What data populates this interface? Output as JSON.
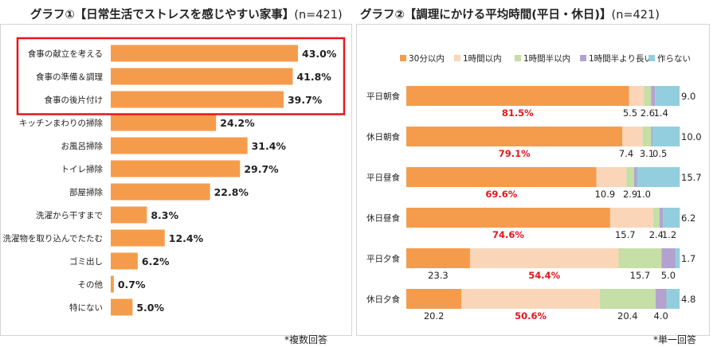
{
  "chart1": {
    "title": "グラフ①【日常生活でストレスを感じやすい家事】",
    "n_label": "(n=421)",
    "note": "*複数回答",
    "colors": {
      "bar": "#f59c4c",
      "highlight": "#e8141c"
    },
    "chart_data": {
      "type": "bar",
      "orientation": "horizontal",
      "categories": [
        "食事の献立を考える",
        "食事の準備＆調理",
        "食事の後片付け",
        "キッチンまわりの掃除",
        "お風呂掃除",
        "トイレ掃除",
        "部屋掃除",
        "洗濯から干すまで",
        "洗濯物を取り込んでたたむ",
        "ゴミ出し",
        "その他",
        "特にない"
      ],
      "values": [
        43.0,
        41.8,
        39.7,
        24.2,
        31.4,
        29.7,
        22.8,
        8.3,
        12.4,
        6.2,
        0.7,
        5.0
      ],
      "value_labels": [
        "43.0%",
        "41.8%",
        "39.7%",
        "24.2%",
        "31.4%",
        "29.7%",
        "22.8%",
        "8.3%",
        "12.4%",
        "6.2%",
        "0.7%",
        "5.0%"
      ],
      "xlim": [
        0,
        43
      ],
      "grid": false,
      "highlighted_categories": [
        "食事の献立を考える",
        "食事の準備＆調理",
        "食事の後片付け"
      ]
    }
  },
  "chart2": {
    "title": "グラフ②【調理にかける平均時間(平日・休日)】",
    "n_label": "(n=421)",
    "note": "*単一回答",
    "colors": {
      "series": [
        "#f59c4c",
        "#fbd5b8",
        "#c5dfa6",
        "#b3a2cf",
        "#93cedf"
      ],
      "major_label": "#e8141c"
    },
    "chart_data": {
      "type": "bar",
      "orientation": "horizontal",
      "stacked": "percent",
      "categories": [
        "平日朝食",
        "休日朝食",
        "平日昼食",
        "休日昼食",
        "平日夕食",
        "休日夕食"
      ],
      "series": [
        {
          "name": "30分以内",
          "values": [
            81.5,
            79.1,
            69.6,
            74.6,
            23.3,
            20.2
          ]
        },
        {
          "name": "1時間以内",
          "values": [
            5.5,
            7.4,
            10.9,
            15.7,
            54.4,
            50.6
          ]
        },
        {
          "name": "1時間半以内",
          "values": [
            2.6,
            3.1,
            2.9,
            2.4,
            15.7,
            20.4
          ]
        },
        {
          "name": "1時間半より長い",
          "values": [
            1.4,
            0.5,
            1.0,
            1.2,
            5.0,
            4.0
          ]
        },
        {
          "name": "作らない",
          "values": [
            9.0,
            10.0,
            15.7,
            6.2,
            1.7,
            4.8
          ]
        }
      ],
      "legend": "top",
      "grid": false,
      "ylim": [
        0,
        100
      ]
    }
  }
}
